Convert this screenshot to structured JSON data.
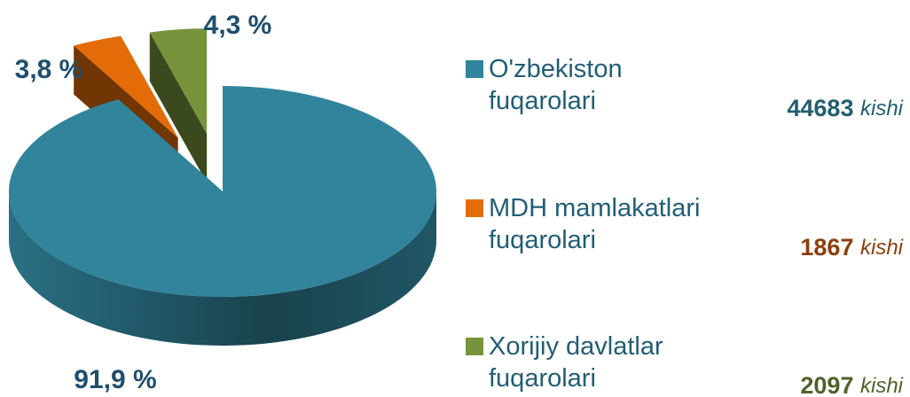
{
  "chart_data": {
    "type": "pie3d",
    "categories": [
      "O'zbekiston fuqarolari",
      "MDH mamlakatlari fuqarolari",
      "Xorijiy davlatlar fuqarolari"
    ],
    "values": [
      91.9,
      3.8,
      4.3
    ],
    "value_labels": [
      "91,9 %",
      "3,8 %",
      "4,3 %"
    ],
    "colors": [
      "#31849b",
      "#e36c09",
      "#77933c"
    ],
    "counts": [
      44683,
      1867,
      2097
    ],
    "count_unit": "kishi",
    "count_colors": [
      "#215e70",
      "#8b3f0d",
      "#4f6228"
    ]
  }
}
